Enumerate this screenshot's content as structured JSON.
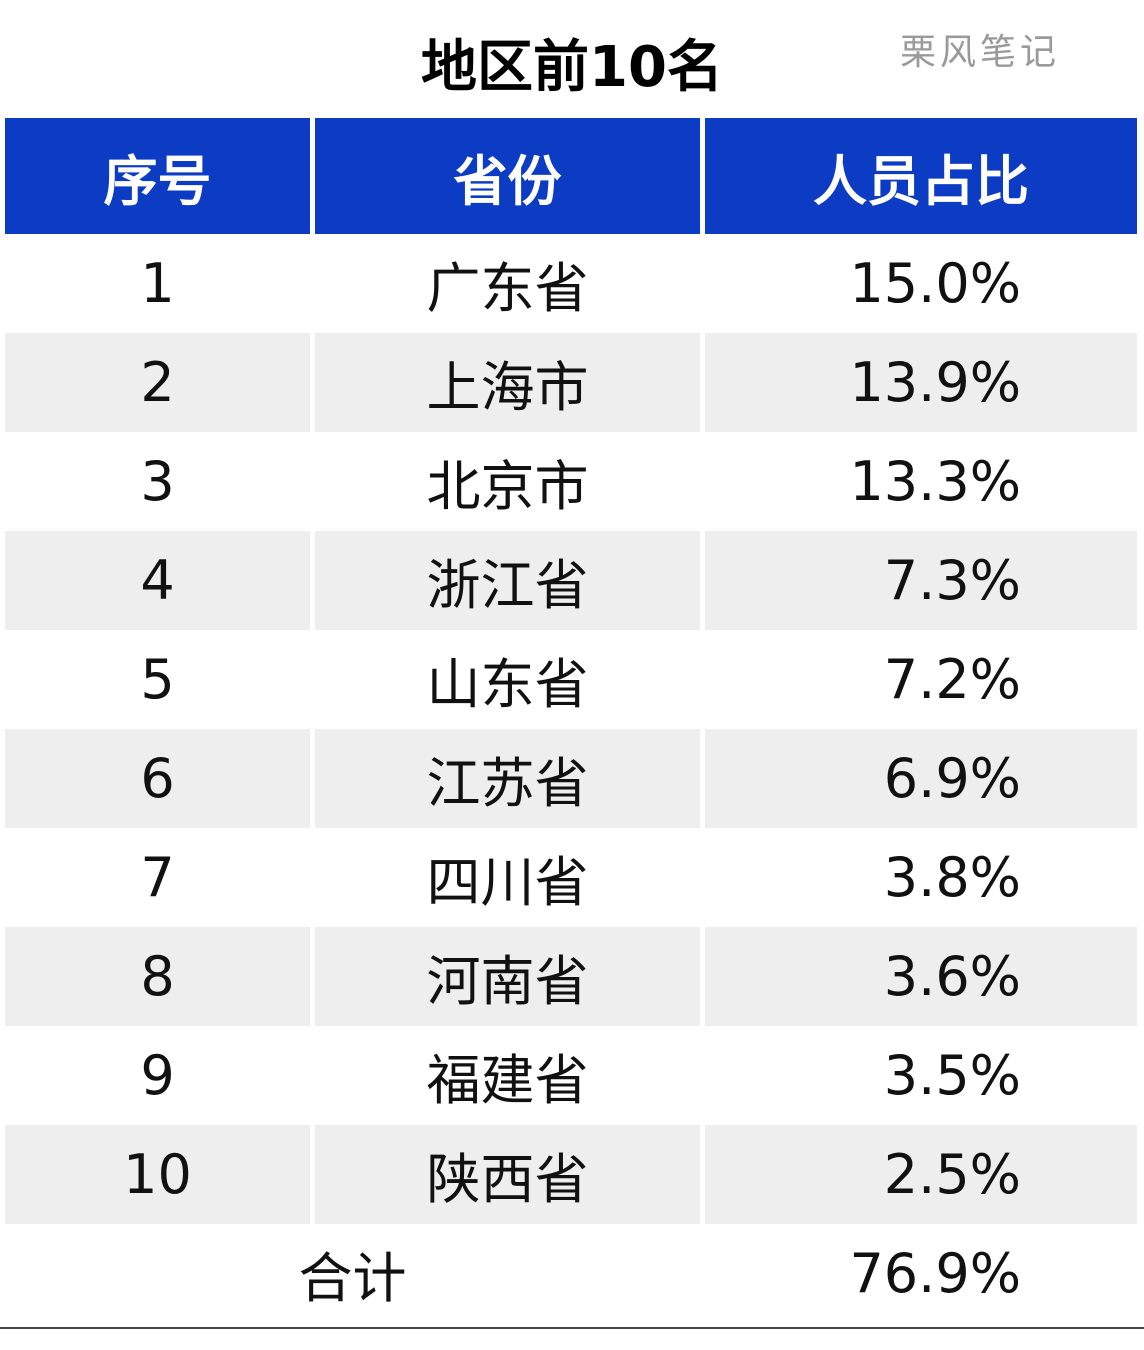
{
  "title": "地区前10名",
  "watermark": "栗风笔记",
  "colors": {
    "header_bg": "#0c3cc4",
    "header_text": "#ffffff",
    "stripe_bg": "#eeeeee"
  },
  "headers": [
    "序号",
    "省份",
    "人员占比"
  ],
  "chart_data": {
    "type": "table",
    "title": "地区前10名",
    "columns": [
      "序号",
      "省份",
      "人员占比"
    ],
    "rows": [
      {
        "rank": "1",
        "province": "广东省",
        "share": "15.0%"
      },
      {
        "rank": "2",
        "province": "上海市",
        "share": "13.9%"
      },
      {
        "rank": "3",
        "province": "北京市",
        "share": "13.3%"
      },
      {
        "rank": "4",
        "province": "浙江省",
        "share": "7.3%"
      },
      {
        "rank": "5",
        "province": "山东省",
        "share": "7.2%"
      },
      {
        "rank": "6",
        "province": "江苏省",
        "share": "6.9%"
      },
      {
        "rank": "7",
        "province": "四川省",
        "share": "3.8%"
      },
      {
        "rank": "8",
        "province": "河南省",
        "share": "3.6%"
      },
      {
        "rank": "9",
        "province": "福建省",
        "share": "3.5%"
      },
      {
        "rank": "10",
        "province": "陕西省",
        "share": "2.5%"
      }
    ],
    "total": {
      "label": "合计",
      "share": "76.9%"
    }
  }
}
